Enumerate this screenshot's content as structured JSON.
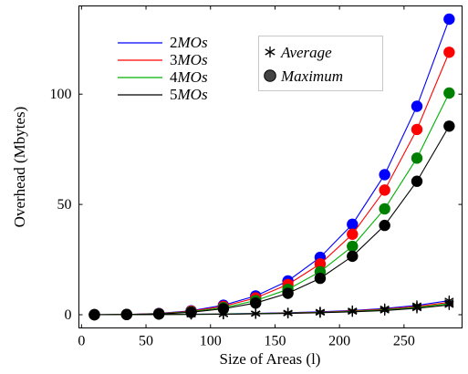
{
  "chart_data": {
    "type": "line",
    "title": "",
    "xlabel": "Size of Areas (l)",
    "ylabel": "Overhead (Mbytes)",
    "xlim": [
      -2,
      295
    ],
    "ylim": [
      -6,
      140
    ],
    "xticks": [
      0,
      50,
      100,
      150,
      200,
      250
    ],
    "yticks": [
      0,
      50,
      100
    ],
    "grid": false,
    "x": [
      10,
      35,
      60,
      85,
      110,
      135,
      160,
      185,
      210,
      235,
      260,
      285
    ],
    "series_legend": [
      {
        "name": "2MOs",
        "color": "#0000ff"
      },
      {
        "name": "3MOs",
        "color": "#ff0000"
      },
      {
        "name": "4MOs",
        "color": "#00b000"
      },
      {
        "name": "5MOs",
        "color": "#000000"
      }
    ],
    "marker_legend": [
      {
        "name": "Average",
        "marker": "star"
      },
      {
        "name": "Maximum",
        "marker": "circle"
      }
    ],
    "series": [
      {
        "name": "2MOs Average",
        "group": "2MOs",
        "stat": "Average",
        "color": "#0000ff",
        "marker_color": "#000000",
        "values": [
          0.0,
          0.0,
          0.1,
          0.2,
          0.4,
          0.6,
          0.9,
          1.3,
          1.9,
          2.8,
          4.2,
          6.4
        ]
      },
      {
        "name": "3MOs Average",
        "group": "3MOs",
        "stat": "Average",
        "color": "#ff0000",
        "marker_color": "#000000",
        "values": [
          0.0,
          0.0,
          0.1,
          0.2,
          0.3,
          0.5,
          0.8,
          1.1,
          1.7,
          2.5,
          3.7,
          5.6
        ]
      },
      {
        "name": "4MOs Average",
        "group": "4MOs",
        "stat": "Average",
        "color": "#00b000",
        "marker_color": "#000000",
        "values": [
          0.0,
          0.0,
          0.1,
          0.2,
          0.3,
          0.5,
          0.7,
          1.0,
          1.5,
          2.2,
          3.3,
          5.0
        ]
      },
      {
        "name": "5MOs Average",
        "group": "5MOs",
        "stat": "Average",
        "color": "#000000",
        "marker_color": "#000000",
        "values": [
          0.0,
          0.0,
          0.1,
          0.1,
          0.2,
          0.4,
          0.6,
          0.9,
          1.3,
          1.9,
          2.9,
          4.4
        ]
      },
      {
        "name": "2MOs Maximum",
        "group": "2MOs",
        "stat": "Maximum",
        "color": "#0000ff",
        "marker_color": "#0000ff",
        "values": [
          0.0,
          0.1,
          0.6,
          1.8,
          4.3,
          8.5,
          15.3,
          26.0,
          41.0,
          63.5,
          94.5,
          134.0
        ]
      },
      {
        "name": "3MOs Maximum",
        "group": "3MOs",
        "stat": "Maximum",
        "color": "#ff0000",
        "marker_color": "#ff0000",
        "values": [
          0.0,
          0.1,
          0.5,
          1.6,
          3.8,
          7.6,
          13.7,
          23.0,
          36.5,
          56.5,
          84.0,
          119.0
        ]
      },
      {
        "name": "4MOs Maximum",
        "group": "4MOs",
        "stat": "Maximum",
        "color": "#00b000",
        "marker_color": "#008000",
        "values": [
          0.0,
          0.1,
          0.4,
          1.3,
          3.2,
          6.4,
          11.5,
          19.5,
          31.0,
          48.0,
          71.0,
          100.5
        ]
      },
      {
        "name": "5MOs Maximum",
        "group": "5MOs",
        "stat": "Maximum",
        "color": "#000000",
        "marker_color": "#000000",
        "values": [
          0.0,
          0.1,
          0.3,
          1.1,
          2.7,
          5.3,
          9.7,
          16.5,
          26.5,
          40.5,
          60.5,
          85.5
        ]
      }
    ]
  }
}
